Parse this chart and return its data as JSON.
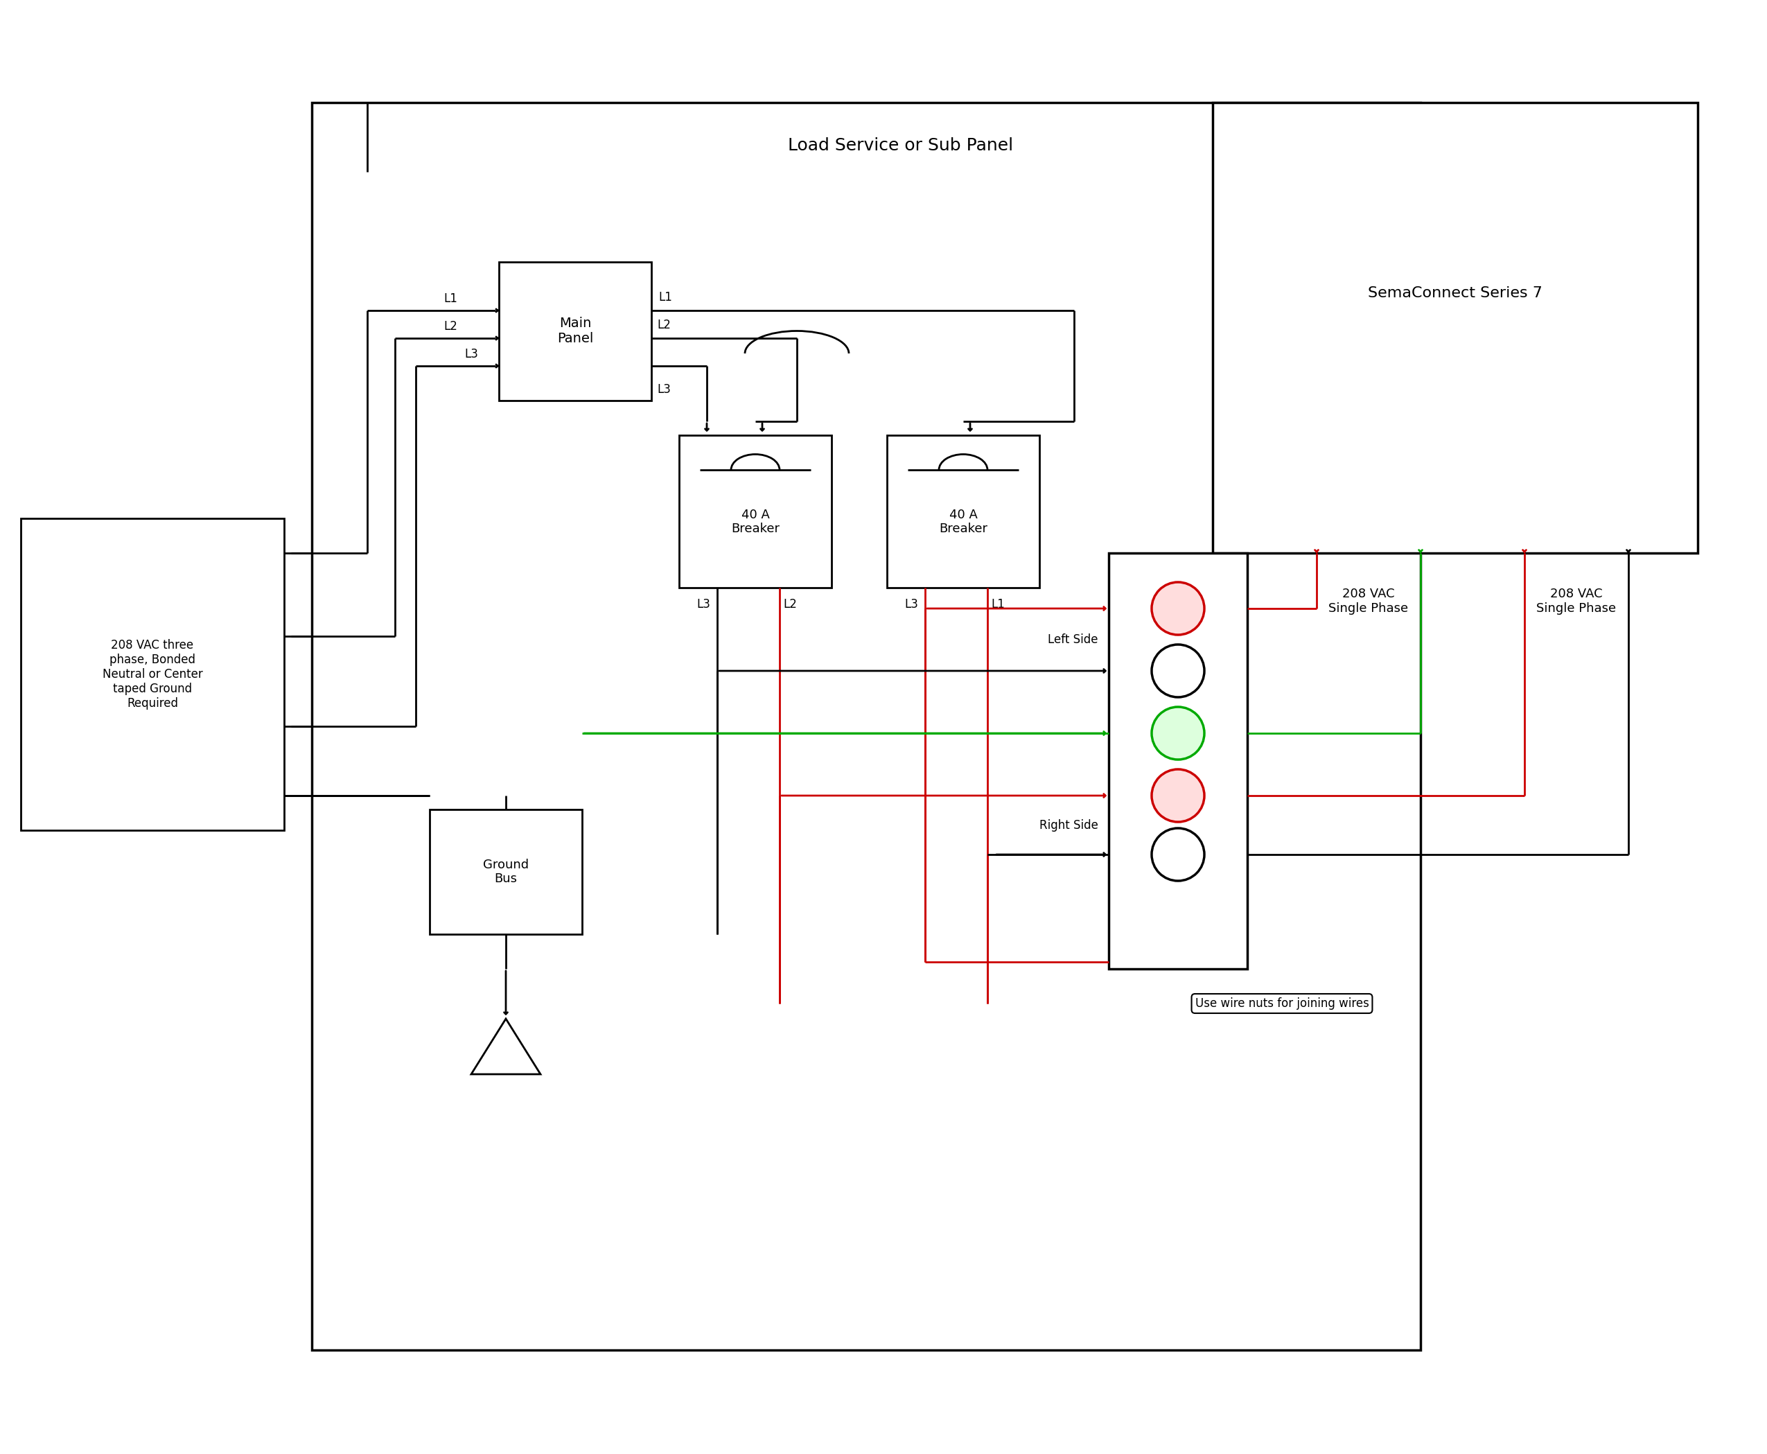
{
  "title": "Load Service or Sub Panel",
  "sema_title": "SemaConnect Series 7",
  "source_label": "208 VAC three\nphase, Bonded\nNeutral or Center\ntaped Ground\nRequired",
  "wire_note": "Use wire nuts for joining wires",
  "vac_left": "208 VAC\nSingle Phase",
  "vac_right": "208 VAC\nSingle Phase",
  "background": "#ffffff",
  "line_color": "#000000",
  "red_color": "#cc0000",
  "green_color": "#00aa00",
  "fig_width": 25.5,
  "fig_height": 20.98
}
